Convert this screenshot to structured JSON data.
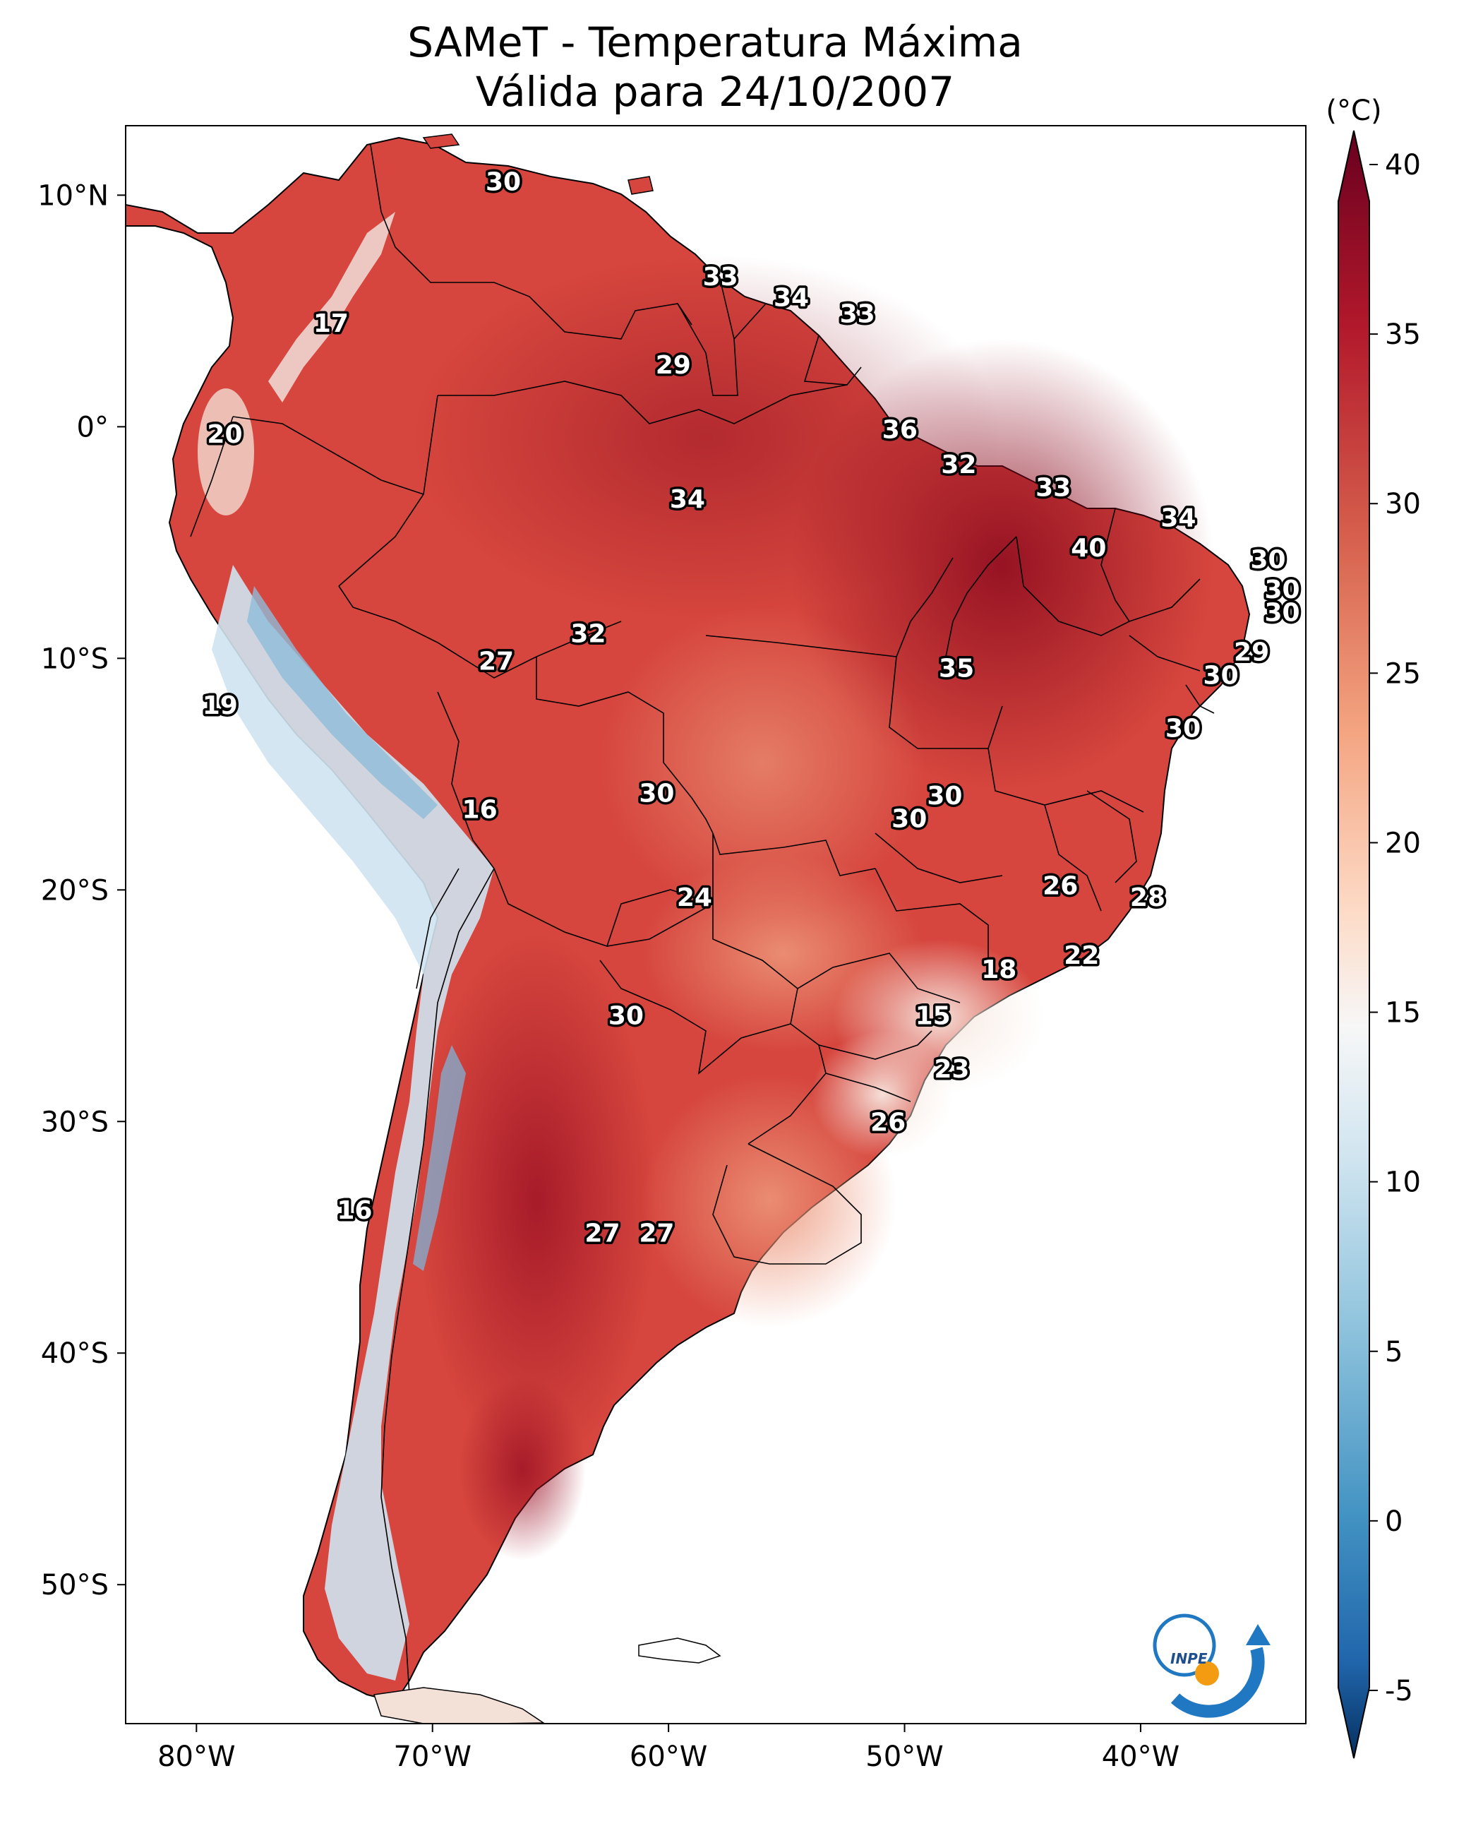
{
  "title": {
    "line1": "SAMeT - Temperatura Máxima",
    "line2": "Válida para 24/10/2007"
  },
  "colorbar": {
    "unit_label": "(°C)",
    "ticks": [
      "40",
      "35",
      "30",
      "25",
      "20",
      "15",
      "10",
      "5",
      "0",
      "-5"
    ],
    "range": [
      -7,
      41
    ]
  },
  "axes": {
    "lon_labels": [
      "80°W",
      "70°W",
      "60°W",
      "50°W",
      "40°W"
    ],
    "lat_labels": [
      "10°N",
      "0°",
      "10°S",
      "20°S",
      "30°S",
      "40°S",
      "50°S"
    ],
    "lon_range": [
      -83,
      -33
    ],
    "lat_range": [
      13,
      -56
    ]
  },
  "contour_labels": [
    {
      "value": "30",
      "lon": -67,
      "lat": 10.6
    },
    {
      "value": "33",
      "lon": -57.8,
      "lat": 6.5
    },
    {
      "value": "34",
      "lon": -54.8,
      "lat": 5.6
    },
    {
      "value": "33",
      "lon": -52,
      "lat": 4.9
    },
    {
      "value": "17",
      "lon": -74.3,
      "lat": 4.5
    },
    {
      "value": "29",
      "lon": -59.8,
      "lat": 2.7
    },
    {
      "value": "20",
      "lon": -78.8,
      "lat": -0.3
    },
    {
      "value": "36",
      "lon": -50.2,
      "lat": -0.1
    },
    {
      "value": "32",
      "lon": -47.7,
      "lat": -1.6
    },
    {
      "value": "33",
      "lon": -43.7,
      "lat": -2.6
    },
    {
      "value": "34",
      "lon": -59.2,
      "lat": -3.1
    },
    {
      "value": "34",
      "lon": -38.4,
      "lat": -3.9
    },
    {
      "value": "40",
      "lon": -42.2,
      "lat": -5.2
    },
    {
      "value": "30",
      "lon": -34.6,
      "lat": -5.7
    },
    {
      "value": "30",
      "lon": -34,
      "lat": -7
    },
    {
      "value": "30",
      "lon": -34,
      "lat": -8
    },
    {
      "value": "32",
      "lon": -63.4,
      "lat": -8.9
    },
    {
      "value": "29",
      "lon": -35.3,
      "lat": -9.7
    },
    {
      "value": "27",
      "lon": -67.3,
      "lat": -10.1
    },
    {
      "value": "35",
      "lon": -47.8,
      "lat": -10.4
    },
    {
      "value": "30",
      "lon": -36.6,
      "lat": -10.7
    },
    {
      "value": "19",
      "lon": -79,
      "lat": -12
    },
    {
      "value": "30",
      "lon": -38.2,
      "lat": -13
    },
    {
      "value": "30",
      "lon": -60.5,
      "lat": -15.8
    },
    {
      "value": "30",
      "lon": -48.3,
      "lat": -15.9
    },
    {
      "value": "16",
      "lon": -68,
      "lat": -16.5
    },
    {
      "value": "30",
      "lon": -49.8,
      "lat": -16.9
    },
    {
      "value": "26",
      "lon": -43.4,
      "lat": -19.8
    },
    {
      "value": "24",
      "lon": -58.9,
      "lat": -20.3
    },
    {
      "value": "28",
      "lon": -39.7,
      "lat": -20.3
    },
    {
      "value": "22",
      "lon": -42.5,
      "lat": -22.8
    },
    {
      "value": "18",
      "lon": -46,
      "lat": -23.4
    },
    {
      "value": "30",
      "lon": -61.8,
      "lat": -25.4
    },
    {
      "value": "15",
      "lon": -48.8,
      "lat": -25.4
    },
    {
      "value": "23",
      "lon": -48,
      "lat": -27.7
    },
    {
      "value": "26",
      "lon": -50.7,
      "lat": -30
    },
    {
      "value": "16",
      "lon": -73.3,
      "lat": -33.8
    },
    {
      "value": "27",
      "lon": -62.8,
      "lat": -34.8
    },
    {
      "value": "27",
      "lon": -60.5,
      "lat": -34.8
    }
  ],
  "logo": {
    "text": "INPE"
  },
  "colors": {
    "ocean": "#ffffff",
    "land_base": "#d6463e",
    "hot": "#8b0a1e",
    "warm": "#e58368",
    "cool": "#f4ddd1",
    "cold": "#92c0dd",
    "logo_blue": "#1f78c1",
    "logo_orange": "#f39c12"
  }
}
